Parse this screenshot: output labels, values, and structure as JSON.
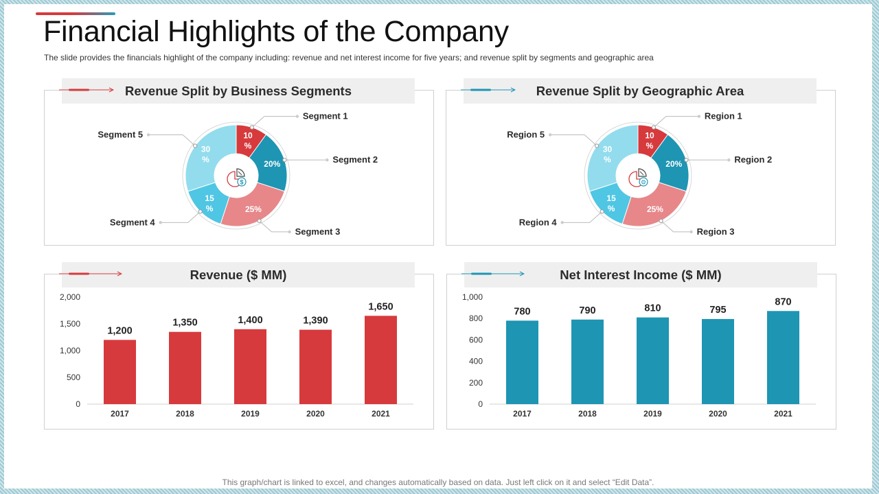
{
  "title": "Financial Highlights of the Company",
  "subtitle": "The slide provides  the financials highlight of the company including:  revenue   and net interest income for five  years;  and revenue  split by segments and geographic  area",
  "footer": "This graph/chart is linked to excel, and changes automatically based on data. Just left click on it and select “Edit Data”.",
  "colors": {
    "red": "#d63a3d",
    "teal": "#1e95b3",
    "salmon": "#e7878a",
    "light_cyan": "#4fc6e3",
    "pale_blue": "#92dced",
    "header_bg": "#efefef"
  },
  "panels": {
    "segments": {
      "title": "Revenue Split by Business Segments",
      "center_icon": "pie-chart-dollar-icon"
    },
    "geographic": {
      "title": "Revenue Split by Geographic Area",
      "center_icon": "pie-chart-gear-icon"
    },
    "revenue": {
      "title": "Revenue ($ MM)"
    },
    "nii": {
      "title": "Net Interest Income ($ MM)"
    }
  },
  "chart_data": [
    {
      "type": "pie",
      "title": "Revenue Split by Business Segments",
      "labels": [
        "Segment 1",
        "Segment 2",
        "Segment 3",
        "Segment 4",
        "Segment 5"
      ],
      "values": [
        10,
        20,
        25,
        15,
        30
      ],
      "value_labels": [
        "10 %",
        "20%",
        "25%",
        "15 %",
        "30 %"
      ],
      "colors": [
        "#d63a3d",
        "#1e95b3",
        "#e7878a",
        "#4fc6e3",
        "#92dced"
      ]
    },
    {
      "type": "pie",
      "title": "Revenue Split by Geographic Area",
      "labels": [
        "Region 1",
        "Region 2",
        "Region 3",
        "Region 4",
        "Region 5"
      ],
      "values": [
        10,
        20,
        25,
        15,
        30
      ],
      "value_labels": [
        "10 %",
        "20%",
        "25%",
        "15 %",
        "30 %"
      ],
      "colors": [
        "#d63a3d",
        "#1e95b3",
        "#e7878a",
        "#4fc6e3",
        "#92dced"
      ]
    },
    {
      "type": "bar",
      "title": "Revenue ($ MM)",
      "categories": [
        "2017",
        "2018",
        "2019",
        "2020",
        "2021"
      ],
      "values": [
        1200,
        1350,
        1400,
        1390,
        1650
      ],
      "data_labels": [
        "1,200",
        "1,350",
        "1,400",
        "1,390",
        "1,650"
      ],
      "y_ticks": [
        "0",
        "500",
        "1,000",
        "1,500",
        "2,000"
      ],
      "ylim": [
        0,
        2000
      ],
      "color": "#d63a3d"
    },
    {
      "type": "bar",
      "title": "Net Interest Income ($ MM)",
      "categories": [
        "2017",
        "2018",
        "2019",
        "2020",
        "2021"
      ],
      "values": [
        780,
        790,
        810,
        795,
        870
      ],
      "data_labels": [
        "780",
        "790",
        "810",
        "795",
        "870"
      ],
      "y_ticks": [
        "0",
        "200",
        "400",
        "600",
        "800",
        "1,000"
      ],
      "ylim": [
        0,
        1000
      ],
      "color": "#1e95b3"
    }
  ]
}
